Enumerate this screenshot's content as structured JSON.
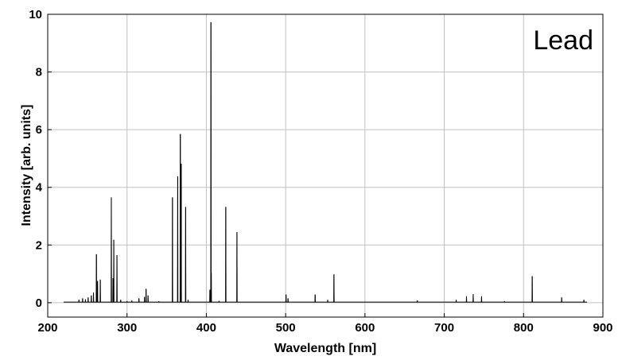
{
  "chart_data": {
    "type": "line",
    "title": "Lead",
    "xlabel": "Wavelength [nm]",
    "ylabel": "Intensity [arb. units]",
    "xlim": [
      200,
      900
    ],
    "ylim": [
      -0.5,
      10
    ],
    "xticks": [
      200,
      300,
      400,
      500,
      600,
      700,
      800,
      900
    ],
    "yticks": [
      0,
      2,
      4,
      6,
      8,
      10
    ],
    "grid": true,
    "line_color": "#000000",
    "grid_color": "#c0c0c0",
    "baseline": {
      "x_start": 220,
      "x_end": 880,
      "value": 0.02
    },
    "peaks": [
      {
        "x": 239.4,
        "y": 0.1
      },
      {
        "x": 244.0,
        "y": 0.15
      },
      {
        "x": 247.6,
        "y": 0.12
      },
      {
        "x": 251.0,
        "y": 0.18
      },
      {
        "x": 255.0,
        "y": 0.25
      },
      {
        "x": 257.7,
        "y": 0.35
      },
      {
        "x": 261.4,
        "y": 1.68
      },
      {
        "x": 262.8,
        "y": 0.75
      },
      {
        "x": 266.3,
        "y": 0.8
      },
      {
        "x": 280.2,
        "y": 3.65
      },
      {
        "x": 282.3,
        "y": 0.85
      },
      {
        "x": 283.3,
        "y": 2.18
      },
      {
        "x": 287.3,
        "y": 1.65
      },
      {
        "x": 292.0,
        "y": 0.1
      },
      {
        "x": 300.0,
        "y": 0.05
      },
      {
        "x": 306.0,
        "y": 0.07
      },
      {
        "x": 315.0,
        "y": 0.15
      },
      {
        "x": 322.0,
        "y": 0.2
      },
      {
        "x": 324.0,
        "y": 0.48
      },
      {
        "x": 326.5,
        "y": 0.25
      },
      {
        "x": 340.0,
        "y": 0.05
      },
      {
        "x": 357.3,
        "y": 3.65
      },
      {
        "x": 363.9,
        "y": 4.38
      },
      {
        "x": 367.2,
        "y": 5.85
      },
      {
        "x": 368.3,
        "y": 4.82
      },
      {
        "x": 373.9,
        "y": 3.32
      },
      {
        "x": 377.0,
        "y": 0.1
      },
      {
        "x": 404.5,
        "y": 0.45
      },
      {
        "x": 405.8,
        "y": 9.72
      },
      {
        "x": 406.2,
        "y": 1.05
      },
      {
        "x": 416.0,
        "y": 0.06
      },
      {
        "x": 424.5,
        "y": 3.32
      },
      {
        "x": 438.6,
        "y": 2.45
      },
      {
        "x": 500.5,
        "y": 0.28
      },
      {
        "x": 503.0,
        "y": 0.15
      },
      {
        "x": 537.2,
        "y": 0.28
      },
      {
        "x": 553.0,
        "y": 0.1
      },
      {
        "x": 560.9,
        "y": 0.98
      },
      {
        "x": 666.0,
        "y": 0.08
      },
      {
        "x": 715.0,
        "y": 0.1
      },
      {
        "x": 728.0,
        "y": 0.22
      },
      {
        "x": 736.5,
        "y": 0.3
      },
      {
        "x": 747.0,
        "y": 0.22
      },
      {
        "x": 776.0,
        "y": 0.05
      },
      {
        "x": 810.9,
        "y": 0.92
      },
      {
        "x": 848.0,
        "y": 0.18
      },
      {
        "x": 876.0,
        "y": 0.1
      }
    ]
  }
}
